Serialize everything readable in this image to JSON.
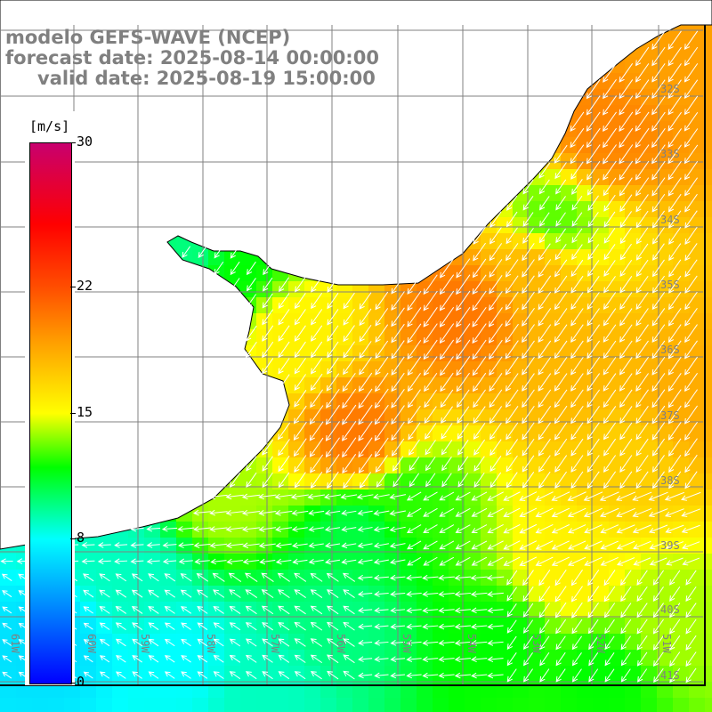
{
  "title": {
    "line1": "modelo GEFS-WAVE (NCEP)",
    "line2": "forecast date: 2025-08-14 00:00:00",
    "line3": "valid date: 2025-08-19 15:00:00"
  },
  "colorbar": {
    "unit": "[m/s]",
    "ticks": [
      "30",
      "22",
      "15",
      "8",
      "0"
    ],
    "tick_values": [
      30,
      22,
      15,
      8,
      0
    ],
    "range": [
      0,
      30
    ]
  },
  "axes": {
    "longitudes": [
      "61W",
      "60W",
      "59W",
      "58W",
      "57W",
      "56W",
      "55W",
      "54W",
      "53W",
      "52W",
      "51W"
    ],
    "latitudes": [
      "32S",
      "33S",
      "34S",
      "35S",
      "36S",
      "37S",
      "38S",
      "39S",
      "40S",
      "41S"
    ]
  },
  "colors": {
    "land": "#ffffff",
    "grid": "#808080",
    "coast": "#000000",
    "arrow": "#ffffff",
    "label": "#808080"
  }
}
